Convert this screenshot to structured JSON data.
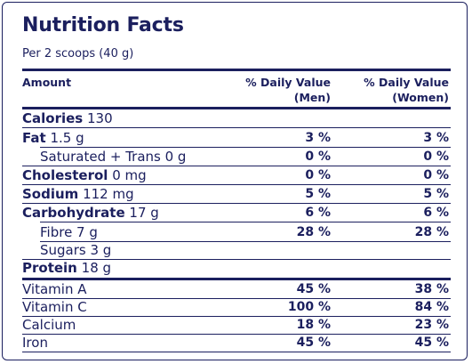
{
  "title": "Nutrition Facts",
  "serving": "Per 2 scoops (40 g)",
  "headers": {
    "amount": "Amount",
    "men_line1": "% Daily Value",
    "men_line2": "(Men)",
    "women_line1": "% Daily Value",
    "women_line2": "(Women)"
  },
  "nutrients": [
    {
      "label": "Calories",
      "amount": "130",
      "men": "",
      "women": ""
    },
    {
      "label": "Fat",
      "amount": "1.5 g",
      "men": "3 %",
      "women": "3 %"
    },
    {
      "label": "",
      "amount": "Saturated + Trans 0 g",
      "men": "0 %",
      "women": "0 %"
    },
    {
      "label": "Cholesterol",
      "amount": "0 mg",
      "men": "0 %",
      "women": "0 %"
    },
    {
      "label": "Sodium",
      "amount": "112 mg",
      "men": "5 %",
      "women": "5 %"
    },
    {
      "label": "Carbohydrate",
      "amount": "17 g",
      "men": "6 %",
      "women": "6 %"
    },
    {
      "label": "",
      "amount": "Fibre 7 g",
      "men": "28 %",
      "women": "28 %"
    },
    {
      "label": "",
      "amount": "Sugars 3 g",
      "men": "",
      "women": ""
    },
    {
      "label": "Protein",
      "amount": "18 g",
      "men": "",
      "women": ""
    }
  ],
  "vitamins": [
    {
      "name": "Vitamin A",
      "men": "45 %",
      "women": "38 %"
    },
    {
      "name": "Vitamin C",
      "men": "100 %",
      "women": "84 %"
    },
    {
      "name": "Calcium",
      "men": "18 %",
      "women": "23 %"
    },
    {
      "name": "Iron",
      "men": "45 %",
      "women": "45 %"
    }
  ]
}
